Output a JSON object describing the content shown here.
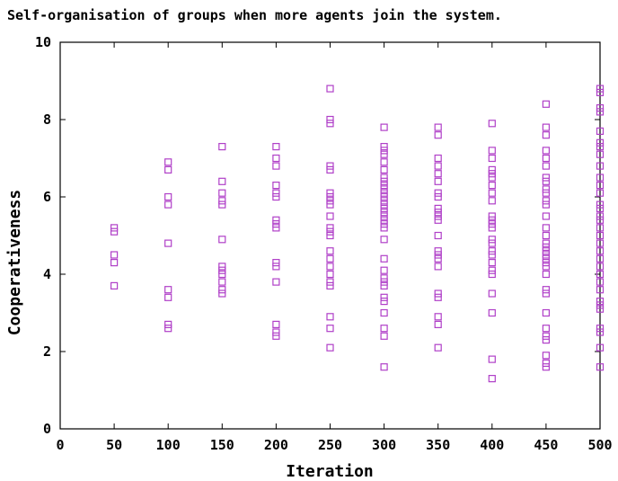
{
  "chart_data": {
    "type": "scatter",
    "title": "Self-organisation of groups when more agents join the system.",
    "xlabel": "Iteration",
    "ylabel": "Cooperativeness",
    "xlim": [
      0,
      500
    ],
    "ylim": [
      0,
      10
    ],
    "xticks": [
      "0",
      "50",
      "100",
      "150",
      "200",
      "250",
      "300",
      "350",
      "400",
      "450",
      "500"
    ],
    "yticks": [
      "0",
      "2",
      "4",
      "6",
      "8",
      "10"
    ],
    "grid": false,
    "marker_color": "#b040c8",
    "series": [
      {
        "x": 50,
        "y": [
          5.2,
          5.1,
          4.5,
          4.3,
          3.7
        ]
      },
      {
        "x": 100,
        "y": [
          6.9,
          6.7,
          6.0,
          5.8,
          4.8,
          3.6,
          3.4,
          2.7,
          2.6
        ]
      },
      {
        "x": 150,
        "y": [
          7.3,
          6.4,
          6.1,
          5.9,
          5.8,
          4.9,
          4.2,
          4.1,
          4.0,
          3.8,
          3.6,
          3.5
        ]
      },
      {
        "x": 200,
        "y": [
          7.3,
          7.0,
          6.8,
          6.3,
          6.1,
          6.0,
          5.4,
          5.3,
          5.2,
          4.3,
          4.2,
          3.8,
          2.7,
          2.5,
          2.4
        ]
      },
      {
        "x": 250,
        "y": [
          8.8,
          8.0,
          7.9,
          6.8,
          6.7,
          6.1,
          6.0,
          5.9,
          5.8,
          5.5,
          5.2,
          5.1,
          5.0,
          4.6,
          4.4,
          4.2,
          4.0,
          3.8,
          3.7,
          2.9,
          2.6,
          2.1
        ]
      },
      {
        "x": 300,
        "y": [
          7.8,
          7.3,
          7.2,
          7.1,
          6.9,
          6.7,
          6.5,
          6.4,
          6.3,
          6.2,
          6.1,
          6.0,
          5.9,
          5.8,
          5.7,
          5.6,
          5.5,
          5.4,
          5.3,
          5.2,
          4.9,
          4.4,
          4.1,
          3.9,
          3.8,
          3.7,
          3.4,
          3.3,
          3.0,
          2.6,
          2.4,
          1.6
        ]
      },
      {
        "x": 350,
        "y": [
          7.8,
          7.6,
          7.0,
          6.8,
          6.6,
          6.4,
          6.1,
          6.0,
          5.7,
          5.6,
          5.5,
          5.4,
          5.0,
          4.6,
          4.5,
          4.4,
          4.2,
          3.5,
          3.4,
          2.9,
          2.7,
          2.1
        ]
      },
      {
        "x": 400,
        "y": [
          7.9,
          7.2,
          7.0,
          6.7,
          6.6,
          6.5,
          6.3,
          6.1,
          5.9,
          5.5,
          5.4,
          5.3,
          5.2,
          4.9,
          4.8,
          4.6,
          4.5,
          4.3,
          4.1,
          4.0,
          3.5,
          3.0,
          1.8,
          1.3
        ]
      },
      {
        "x": 450,
        "y": [
          8.4,
          7.8,
          7.6,
          7.2,
          7.0,
          6.8,
          6.5,
          6.4,
          6.2,
          6.1,
          5.9,
          5.8,
          5.5,
          5.2,
          5.0,
          4.8,
          4.7,
          4.6,
          4.5,
          4.4,
          4.3,
          4.2,
          4.0,
          3.6,
          3.5,
          3.0,
          2.6,
          2.4,
          2.3,
          1.9,
          1.7,
          1.6
        ]
      },
      {
        "x": 500,
        "y": [
          8.8,
          8.7,
          8.3,
          8.2,
          7.7,
          7.4,
          7.3,
          7.1,
          6.8,
          6.5,
          6.3,
          6.1,
          5.8,
          5.7,
          5.5,
          5.4,
          5.2,
          5.0,
          4.8,
          4.6,
          4.4,
          4.2,
          4.0,
          3.8,
          3.6,
          3.3,
          3.2,
          3.1,
          2.6,
          2.5,
          2.1,
          1.6
        ]
      }
    ]
  }
}
